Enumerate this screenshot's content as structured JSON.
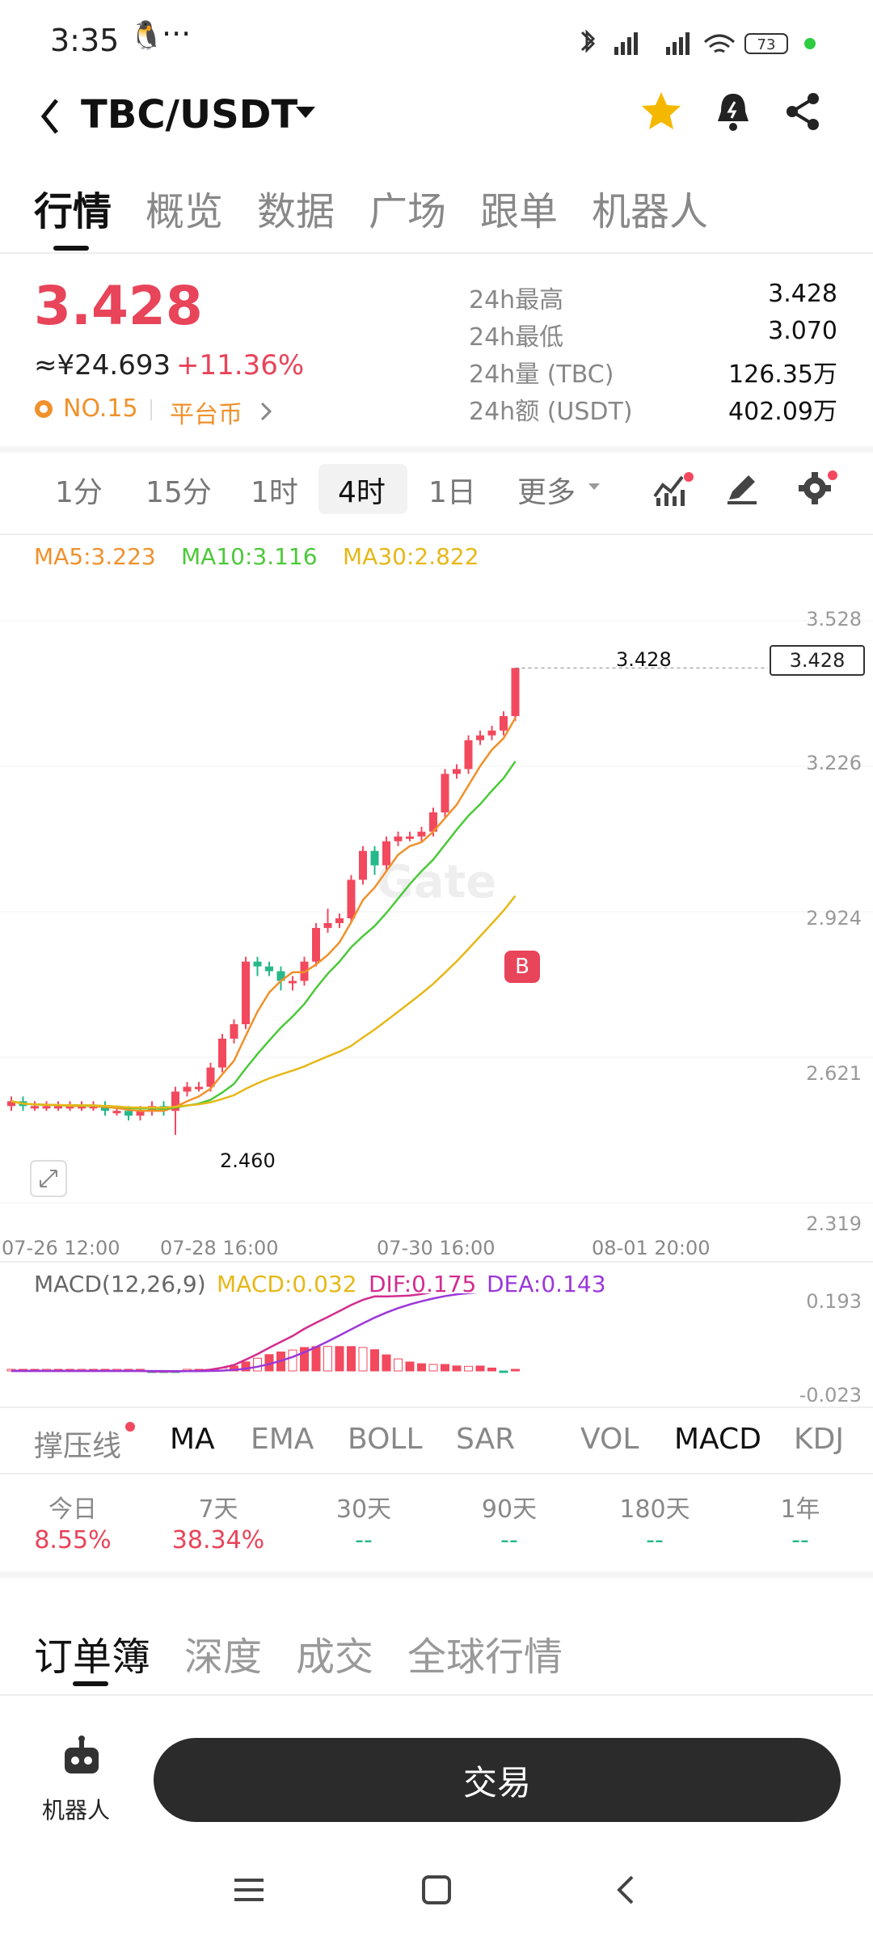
{
  "status": {
    "time": "3:35",
    "battery": "73",
    "dots": "···"
  },
  "header": {
    "title": "TBC/USDT"
  },
  "tabs": [
    "行情",
    "概览",
    "数据",
    "广场",
    "跟单",
    "机器人"
  ],
  "ticker": {
    "price": "3.428",
    "cny": "≈¥24.693",
    "change": "+11.36%",
    "rank": "NO.15",
    "category": "平台币",
    "stats": [
      {
        "label": "24h最高",
        "value": "3.428"
      },
      {
        "label": "24h最低",
        "value": "3.070"
      },
      {
        "label": "24h量 (TBC)",
        "value": "126.35万"
      },
      {
        "label": "24h额 (USDT)",
        "value": "402.09万"
      }
    ]
  },
  "timeframes": [
    "1分",
    "15分",
    "1时",
    "4时",
    "1日",
    "更多"
  ],
  "ma": {
    "ma5": "MA5:3.223",
    "ma10": "MA10:3.116",
    "ma30": "MA30:2.822"
  },
  "chart_data": {
    "type": "candlestick",
    "y_ticks": [
      "3.528",
      "3.226",
      "2.924",
      "2.621",
      "2.319"
    ],
    "x_ticks": [
      "07-26 12:00",
      "07-28 16:00",
      "07-30 16:00",
      "08-01 20:00"
    ],
    "high_label": "3.428",
    "low_label": "2.460",
    "last_price_tag": "3.428",
    "marker": "B",
    "watermark": "Gate",
    "ylim": [
      2.319,
      3.528
    ],
    "candles": [
      [
        2.52,
        2.53,
        2.54,
        2.51
      ],
      [
        2.53,
        2.52,
        2.54,
        2.51
      ],
      [
        2.52,
        2.52,
        2.53,
        2.51
      ],
      [
        2.52,
        2.52,
        2.53,
        2.51
      ],
      [
        2.52,
        2.52,
        2.53,
        2.51
      ],
      [
        2.52,
        2.52,
        2.53,
        2.51
      ],
      [
        2.52,
        2.52,
        2.53,
        2.51
      ],
      [
        2.52,
        2.52,
        2.53,
        2.51
      ],
      [
        2.52,
        2.51,
        2.53,
        2.5
      ],
      [
        2.51,
        2.51,
        2.52,
        2.5
      ],
      [
        2.51,
        2.5,
        2.52,
        2.49
      ],
      [
        2.5,
        2.51,
        2.52,
        2.49
      ],
      [
        2.51,
        2.52,
        2.53,
        2.5
      ],
      [
        2.52,
        2.51,
        2.53,
        2.5
      ],
      [
        2.51,
        2.55,
        2.56,
        2.46
      ],
      [
        2.55,
        2.56,
        2.57,
        2.54
      ],
      [
        2.56,
        2.56,
        2.57,
        2.55
      ],
      [
        2.56,
        2.6,
        2.61,
        2.55
      ],
      [
        2.6,
        2.66,
        2.67,
        2.59
      ],
      [
        2.66,
        2.69,
        2.7,
        2.65
      ],
      [
        2.69,
        2.82,
        2.83,
        2.68
      ],
      [
        2.82,
        2.81,
        2.83,
        2.79
      ],
      [
        2.81,
        2.8,
        2.82,
        2.79
      ],
      [
        2.8,
        2.78,
        2.81,
        2.76
      ],
      [
        2.78,
        2.78,
        2.79,
        2.76
      ],
      [
        2.78,
        2.82,
        2.83,
        2.77
      ],
      [
        2.82,
        2.89,
        2.9,
        2.81
      ],
      [
        2.89,
        2.9,
        2.93,
        2.88
      ],
      [
        2.9,
        2.91,
        2.92,
        2.89
      ],
      [
        2.91,
        2.99,
        3.0,
        2.9
      ],
      [
        2.99,
        3.05,
        3.06,
        2.98
      ],
      [
        3.05,
        3.02,
        3.06,
        3.0
      ],
      [
        3.02,
        3.07,
        3.08,
        3.01
      ],
      [
        3.07,
        3.08,
        3.09,
        3.06
      ],
      [
        3.08,
        3.08,
        3.09,
        3.07
      ],
      [
        3.08,
        3.09,
        3.1,
        3.07
      ],
      [
        3.09,
        3.13,
        3.14,
        3.08
      ],
      [
        3.13,
        3.21,
        3.22,
        3.12
      ],
      [
        3.21,
        3.22,
        3.23,
        3.2
      ],
      [
        3.22,
        3.28,
        3.29,
        3.21
      ],
      [
        3.28,
        3.29,
        3.3,
        3.27
      ],
      [
        3.29,
        3.3,
        3.31,
        3.28
      ],
      [
        3.3,
        3.33,
        3.34,
        3.29
      ],
      [
        3.33,
        3.43,
        3.43,
        3.32
      ]
    ]
  },
  "macd": {
    "label": "MACD(12,26,9)",
    "macd": "MACD:0.032",
    "dif": "DIF:0.175",
    "dea": "DEA:0.143",
    "y_top": "0.193",
    "y_bottom": "-0.023"
  },
  "indicators": [
    "撑压线",
    "MA",
    "EMA",
    "BOLL",
    "SAR",
    "VOL",
    "MACD",
    "KDJ"
  ],
  "performance": [
    {
      "label": "今日",
      "value": "8.55%"
    },
    {
      "label": "7天",
      "value": "38.34%"
    },
    {
      "label": "30天",
      "value": "--"
    },
    {
      "label": "90天",
      "value": "--"
    },
    {
      "label": "180天",
      "value": "--"
    },
    {
      "label": "1年",
      "value": "--"
    }
  ],
  "book_tabs": [
    "订单簿",
    "深度",
    "成交",
    "全球行情"
  ],
  "bottom": {
    "robot_label": "机器人",
    "trade_label": "交易"
  },
  "colors": {
    "up": "#f2495e",
    "down": "#26b88a",
    "ma5": "#f0912c",
    "ma10": "#4cc93a",
    "ma30": "#e6b818",
    "dif": "#d22d8f",
    "dea": "#9b38d8"
  }
}
